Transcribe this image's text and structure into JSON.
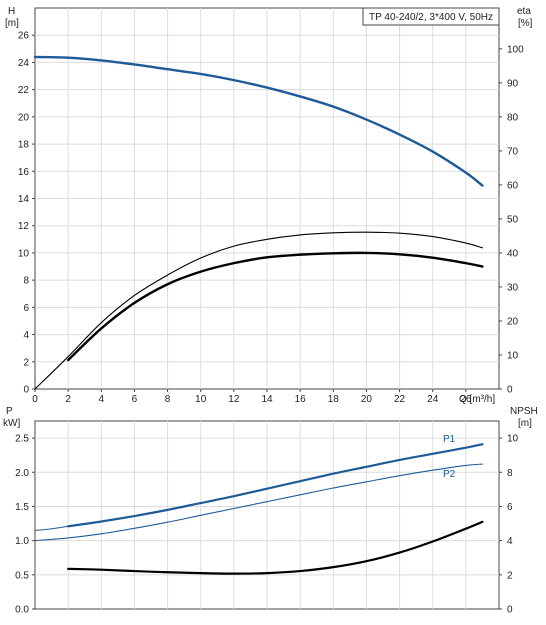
{
  "chart_data": [
    {
      "type": "line",
      "title": "TP 40-240/2, 3*400 V, 50Hz",
      "xlabel": "Q [m³/h]",
      "ylabel_left": [
        "H",
        "[m]"
      ],
      "ylabel_right": [
        "eta",
        "[%]"
      ],
      "xlim": [
        0,
        28
      ],
      "ylim_left": [
        0,
        28
      ],
      "ylim_right": [
        0,
        112
      ],
      "x_ticks": [
        "0",
        "2",
        "4",
        "6",
        "8",
        "10",
        "12",
        "14",
        "16",
        "18",
        "20",
        "22",
        "24",
        "26"
      ],
      "y_ticks_left": [
        "0",
        "2",
        "4",
        "6",
        "8",
        "10",
        "12",
        "14",
        "16",
        "18",
        "20",
        "22",
        "24",
        "26"
      ],
      "y_ticks_right": [
        "0",
        "10",
        "20",
        "30",
        "40",
        "50",
        "60",
        "70",
        "80",
        "90",
        "100"
      ],
      "grid": true,
      "series": [
        {
          "axis": "left",
          "color": "#1f5a99",
          "x": [
            0,
            2,
            4,
            6,
            8,
            10,
            12,
            14,
            16,
            18,
            20,
            22,
            24,
            26,
            27
          ],
          "y": [
            24.4,
            24.35,
            24.15,
            23.85,
            23.5,
            23.15,
            22.7,
            22.15,
            21.5,
            20.75,
            19.8,
            18.7,
            17.45,
            15.9,
            14.95
          ]
        },
        {
          "axis": "right",
          "color": "#000000",
          "style": "thin",
          "x": [
            0,
            2,
            4,
            6,
            8,
            10,
            12,
            14,
            16,
            18,
            20,
            22,
            24,
            26,
            27
          ],
          "y": [
            0,
            9.5,
            19.5,
            27.5,
            33.5,
            38.5,
            42,
            44,
            45.3,
            45.9,
            46.1,
            45.8,
            44.8,
            42.9,
            41.5
          ]
        },
        {
          "axis": "right",
          "color": "#000000",
          "style": "thick",
          "x": [
            2,
            4,
            6,
            8,
            10,
            12,
            14,
            16,
            18,
            20,
            22,
            24,
            26,
            27
          ],
          "y": [
            8.5,
            17.8,
            25.3,
            30.8,
            34.5,
            37,
            38.7,
            39.5,
            39.9,
            40,
            39.6,
            38.6,
            37,
            36
          ]
        }
      ]
    },
    {
      "type": "line",
      "xlabel": "",
      "ylabel_left": [
        "P",
        "kW]"
      ],
      "ylabel_right": [
        "NPSH",
        "[m]"
      ],
      "xlim": [
        0,
        28
      ],
      "ylim_left": [
        0,
        2.75
      ],
      "ylim_right": [
        0,
        11
      ],
      "y_ticks_left": [
        "0.0",
        "0.5",
        "1.0",
        "1.5",
        "2.0",
        "2.5"
      ],
      "y_ticks_right": [
        "0",
        "2",
        "4",
        "6",
        "8",
        "10"
      ],
      "grid": true,
      "series": [
        {
          "name": "P1",
          "axis": "left",
          "color": "#1f5a99",
          "x": [
            2,
            4,
            6,
            8,
            10,
            12,
            14,
            16,
            18,
            20,
            22,
            24,
            26,
            27
          ],
          "y": [
            1.21,
            1.28,
            1.36,
            1.45,
            1.55,
            1.65,
            1.76,
            1.87,
            1.98,
            2.08,
            2.18,
            2.27,
            2.36,
            2.41
          ]
        },
        {
          "name": "P2",
          "axis": "left",
          "color": "#1f5a99",
          "style": "thin",
          "x": [
            0,
            2,
            4,
            6,
            8,
            10,
            12,
            14,
            16,
            18,
            20,
            22,
            24,
            26,
            27
          ],
          "y": [
            1.0,
            1.04,
            1.1,
            1.18,
            1.27,
            1.37,
            1.47,
            1.57,
            1.67,
            1.77,
            1.86,
            1.95,
            2.03,
            2.1,
            2.12
          ]
        },
        {
          "axis": "right",
          "color": "#000000",
          "x": [
            2,
            4,
            6,
            8,
            10,
            12,
            14,
            16,
            18,
            20,
            22,
            24,
            26,
            27
          ],
          "y": [
            2.35,
            2.3,
            2.22,
            2.15,
            2.1,
            2.07,
            2.1,
            2.22,
            2.45,
            2.8,
            3.3,
            3.95,
            4.7,
            5.1
          ]
        }
      ]
    }
  ]
}
